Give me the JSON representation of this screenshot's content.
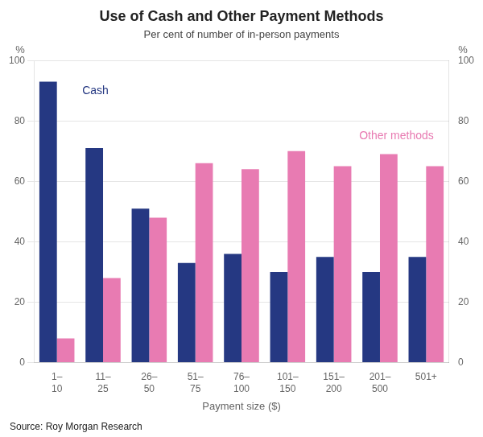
{
  "chart_data": {
    "type": "bar",
    "title": "Use of Cash and Other Payment Methods",
    "subtitle": "Per cent of number of in-person payments",
    "xlabel": "Payment size ($)",
    "ylabel": "%",
    "y2label": "%",
    "source": "Source: Roy Morgan Research",
    "categories": [
      "1–\n10",
      "11–\n25",
      "26–\n50",
      "51–\n75",
      "76–\n100",
      "101–\n150",
      "151–\n200",
      "201–\n500",
      "501+"
    ],
    "series": [
      {
        "name": "Cash",
        "color": "#253882",
        "values": [
          93,
          71,
          51,
          33,
          36,
          30,
          35,
          30,
          35
        ]
      },
      {
        "name": "Other methods",
        "color": "#E87BB2",
        "values": [
          8,
          28,
          48,
          66,
          64,
          70,
          65,
          69,
          65
        ]
      }
    ],
    "ylim": [
      0,
      100
    ],
    "yticks": [
      0,
      20,
      40,
      60,
      80,
      100
    ],
    "y2lim": [
      0,
      100
    ],
    "y2ticks": [
      0,
      20,
      40,
      60,
      80,
      100
    ],
    "grid": true
  }
}
